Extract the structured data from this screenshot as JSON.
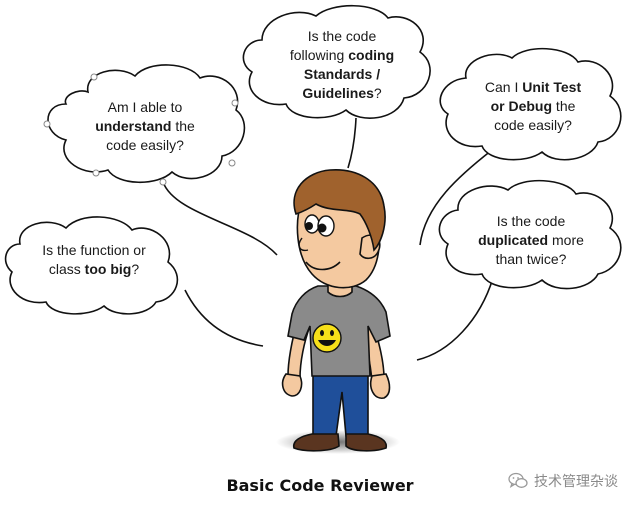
{
  "caption": "Basic Code Reviewer",
  "bubbles": {
    "understand": {
      "a": "Am I able to",
      "b": "understand",
      "c": " the",
      "d": "code easily?"
    },
    "standards": {
      "a": "Is the code",
      "b": "following ",
      "c": "coding",
      "d": "Standards /",
      "e": "Guidelines",
      "f": "?"
    },
    "unittest": {
      "a": "Can I ",
      "b": "Unit Test",
      "c": "or Debug",
      "d": " the",
      "e": "code easily?"
    },
    "toobig": {
      "a": "Is the function or",
      "b": "class ",
      "c": "too big",
      "d": "?"
    },
    "duplicated": {
      "a": "Is the code",
      "b": "duplicated",
      "c": " more",
      "d": "than twice?"
    }
  },
  "watermark": {
    "text": "技术管理杂谈",
    "icon": "wechat-icon"
  },
  "colors": {
    "shirt": "#8a8a8a",
    "hair": "#a0622d",
    "pants": "#1f4f9a",
    "smiley": "#f7e019",
    "skin": "#f4c9a0"
  }
}
